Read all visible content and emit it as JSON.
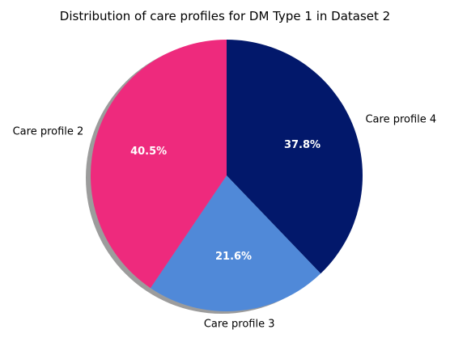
{
  "chart_data": {
    "type": "pie",
    "title": "Distribution of care profiles for DM Type 1 in Dataset 2",
    "categories": [
      "Care profile 4",
      "Care profile 3",
      "Care profile 2"
    ],
    "values": [
      37.8,
      21.6,
      40.5
    ],
    "value_labels": [
      "37.8%",
      "21.6%",
      "40.5%"
    ],
    "colors": [
      "#02186b",
      "#5089d8",
      "#ee2a7d"
    ],
    "start_angle": "top",
    "direction": "clockwise",
    "shadow": true
  }
}
